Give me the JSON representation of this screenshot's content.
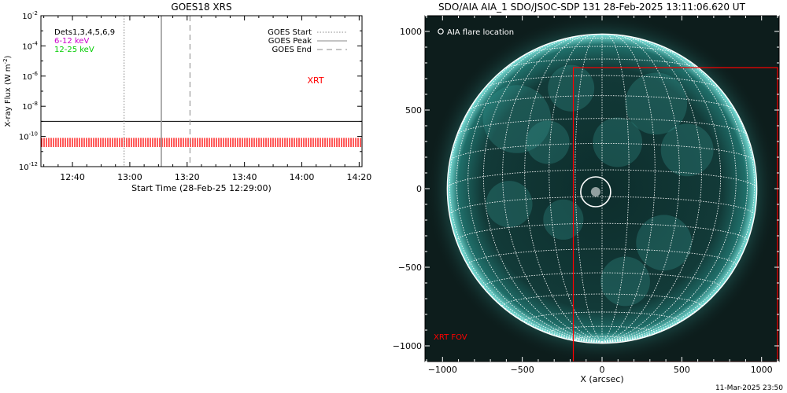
{
  "colors": {
    "xrt": "#ff0000",
    "band_6_12": "#cc00cc",
    "band_12_25": "#00cc00",
    "sun_teal": "#2fd0c8",
    "grid": "#ffffff",
    "background_dark": "#000000"
  },
  "footer": {
    "timestamp": "11-Mar-2025 23:50"
  },
  "chart_data": [
    {
      "type": "line",
      "title": "GOES18 XRS",
      "xlabel": "Start Time (28-Feb-25 12:29:00)",
      "ylabel": "X-ray Flux (W m",
      "ylabel_superscript": "-2",
      "ylabel_close": ")",
      "y_scale": "log",
      "xlim": [
        "12:29",
        "14:21"
      ],
      "ylim": [
        1e-12,
        0.01
      ],
      "x_ticks": [
        "12:40",
        "13:00",
        "13:20",
        "13:40",
        "14:00",
        "14:20"
      ],
      "y_ticks": [
        {
          "value": 0.01,
          "base": "10",
          "exp": "-2"
        },
        {
          "value": 0.0001,
          "base": "10",
          "exp": "-4"
        },
        {
          "value": 1e-06,
          "base": "10",
          "exp": "-6"
        },
        {
          "value": 1e-08,
          "base": "10",
          "exp": "-8"
        },
        {
          "value": 1e-10,
          "base": "10",
          "exp": "-10"
        },
        {
          "value": 1e-12,
          "base": "10",
          "exp": "-12"
        }
      ],
      "dets_label": "Dets1,3,4,5,6,9",
      "series": [
        {
          "name": "6-12 keV",
          "color": "#cc00cc"
        },
        {
          "name": "12-25 keV",
          "color": "#00cc00"
        }
      ],
      "hline_value": 1e-09,
      "xrt_band": {
        "label": "XRT",
        "from": 2e-11,
        "to": 8e-11
      },
      "event_lines": [
        {
          "name": "GOES Start",
          "time": "12:58",
          "style": "dotted"
        },
        {
          "name": "GOES Peak",
          "time": "13:11",
          "style": "solid"
        },
        {
          "name": "GOES End",
          "time": "13:21",
          "style": "dashed"
        }
      ]
    },
    {
      "type": "scatter",
      "title": "SDO/AIA AIA_1 SDO/JSOC-SDP 131 28-Feb-2025 13:11:06.620 UT",
      "xlabel": "X (arcsec)",
      "ylabel": "",
      "xlim": [
        -1110,
        1110
      ],
      "ylim": [
        -1100,
        1100
      ],
      "x_ticks": [
        -1000,
        -500,
        0,
        500,
        1000
      ],
      "y_ticks": [
        1000,
        500,
        0,
        -500,
        -1000
      ],
      "x_tick_labels": [
        "−1000",
        "−500",
        "0",
        "500",
        "1000"
      ],
      "y_tick_labels": [
        "1000",
        "500",
        "0",
        "−500",
        "−1000"
      ],
      "solar_radius_arcsec": 970,
      "flare_location": {
        "label": "AIA flare location",
        "x": -40,
        "y": -20
      },
      "xrt_fov": {
        "label": "XRT FOV",
        "x_range": [
          -180,
          1100
        ],
        "y_range": [
          -1100,
          770
        ]
      }
    }
  ]
}
